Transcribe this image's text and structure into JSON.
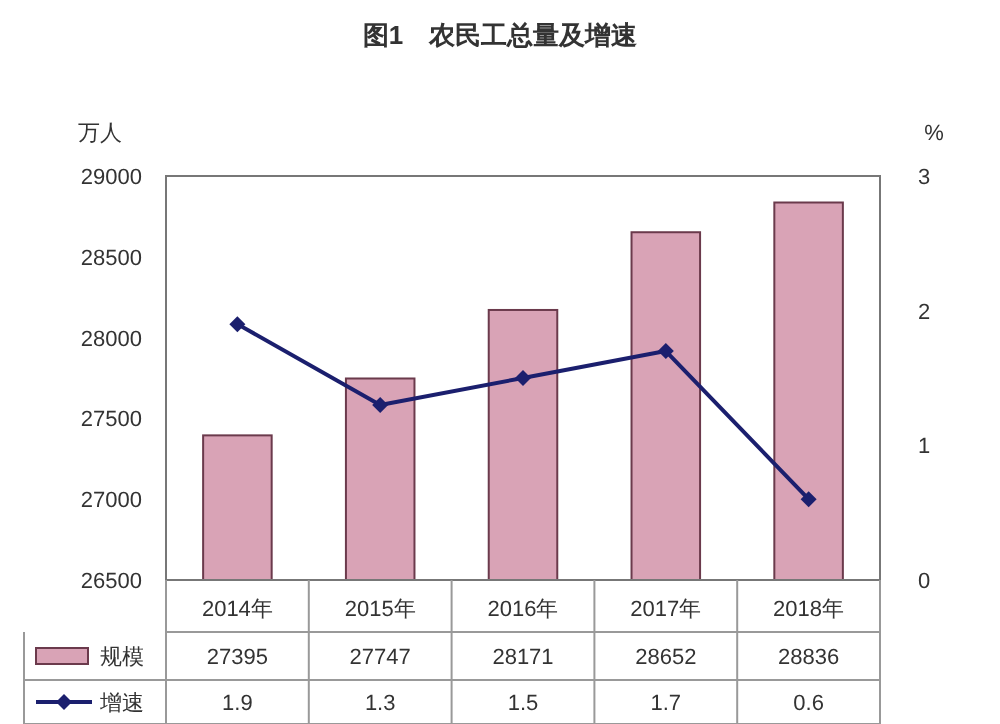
{
  "chart_data": {
    "type": "bar",
    "title": "图1　农民工总量及增速",
    "ylabel": "万人",
    "y2label": "%",
    "categories": [
      "2014年",
      "2015年",
      "2016年",
      "2017年",
      "2018年"
    ],
    "series": [
      {
        "name": "规模",
        "color": "#d9a3b6",
        "values": [
          27395,
          27747,
          28171,
          28652,
          28836
        ]
      },
      {
        "name": "增速",
        "type": "line",
        "axis": "y2",
        "color": "#1b1f6e",
        "marker": "diamond",
        "values": [
          1.9,
          1.3,
          1.5,
          1.7,
          0.6
        ]
      }
    ],
    "ylim": [
      26500,
      29000
    ],
    "yticks": [
      26500,
      27000,
      27500,
      28000,
      28500,
      29000
    ],
    "y2lim": [
      0,
      3
    ],
    "y2ticks": [
      0,
      1,
      2,
      3
    ],
    "data_labels": true,
    "legend": "bottom",
    "grid": false
  }
}
